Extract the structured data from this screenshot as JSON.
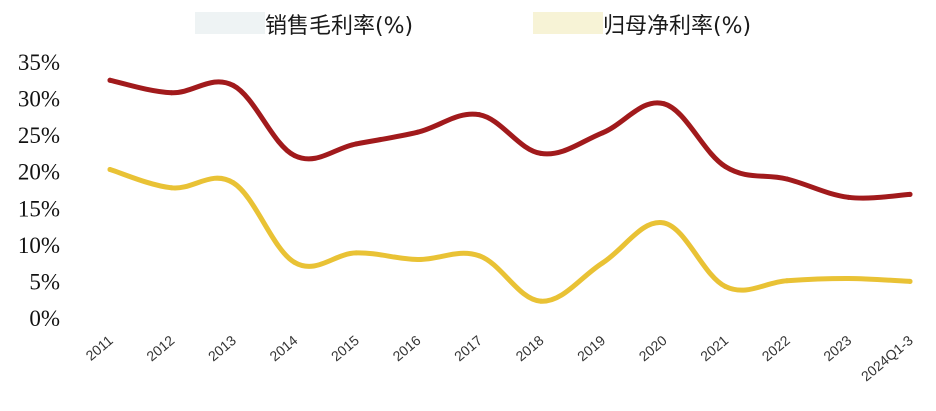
{
  "chart_data": {
    "type": "line",
    "title": "",
    "xlabel": "",
    "ylabel": "",
    "categories": [
      "2011",
      "2012",
      "2013",
      "2014",
      "2015",
      "2016",
      "2017",
      "2018",
      "2019",
      "2020",
      "2021",
      "2022",
      "2023",
      "2024Q1-3"
    ],
    "ylim": [
      0,
      35
    ],
    "yticks": [
      "0%",
      "5%",
      "10%",
      "15%",
      "20%",
      "25%",
      "30%",
      "35%"
    ],
    "ytick_values": [
      0,
      5,
      10,
      15,
      20,
      25,
      30,
      35
    ],
    "grid": false,
    "legend_position": "top",
    "series": [
      {
        "name": "销售毛利率(%)",
        "color": "#a11a1c",
        "values": [
          32.5,
          30.8,
          31.8,
          22.2,
          23.8,
          25.4,
          27.8,
          22.5,
          25.3,
          29.3,
          20.7,
          19.0,
          16.5,
          16.9
        ]
      },
      {
        "name": "归母净利率(%)",
        "color": "#e9c235",
        "values": [
          20.3,
          17.8,
          18.5,
          7.6,
          8.9,
          8.0,
          8.5,
          2.3,
          7.5,
          13.0,
          4.3,
          5.1,
          5.4,
          5.0
        ]
      }
    ]
  }
}
